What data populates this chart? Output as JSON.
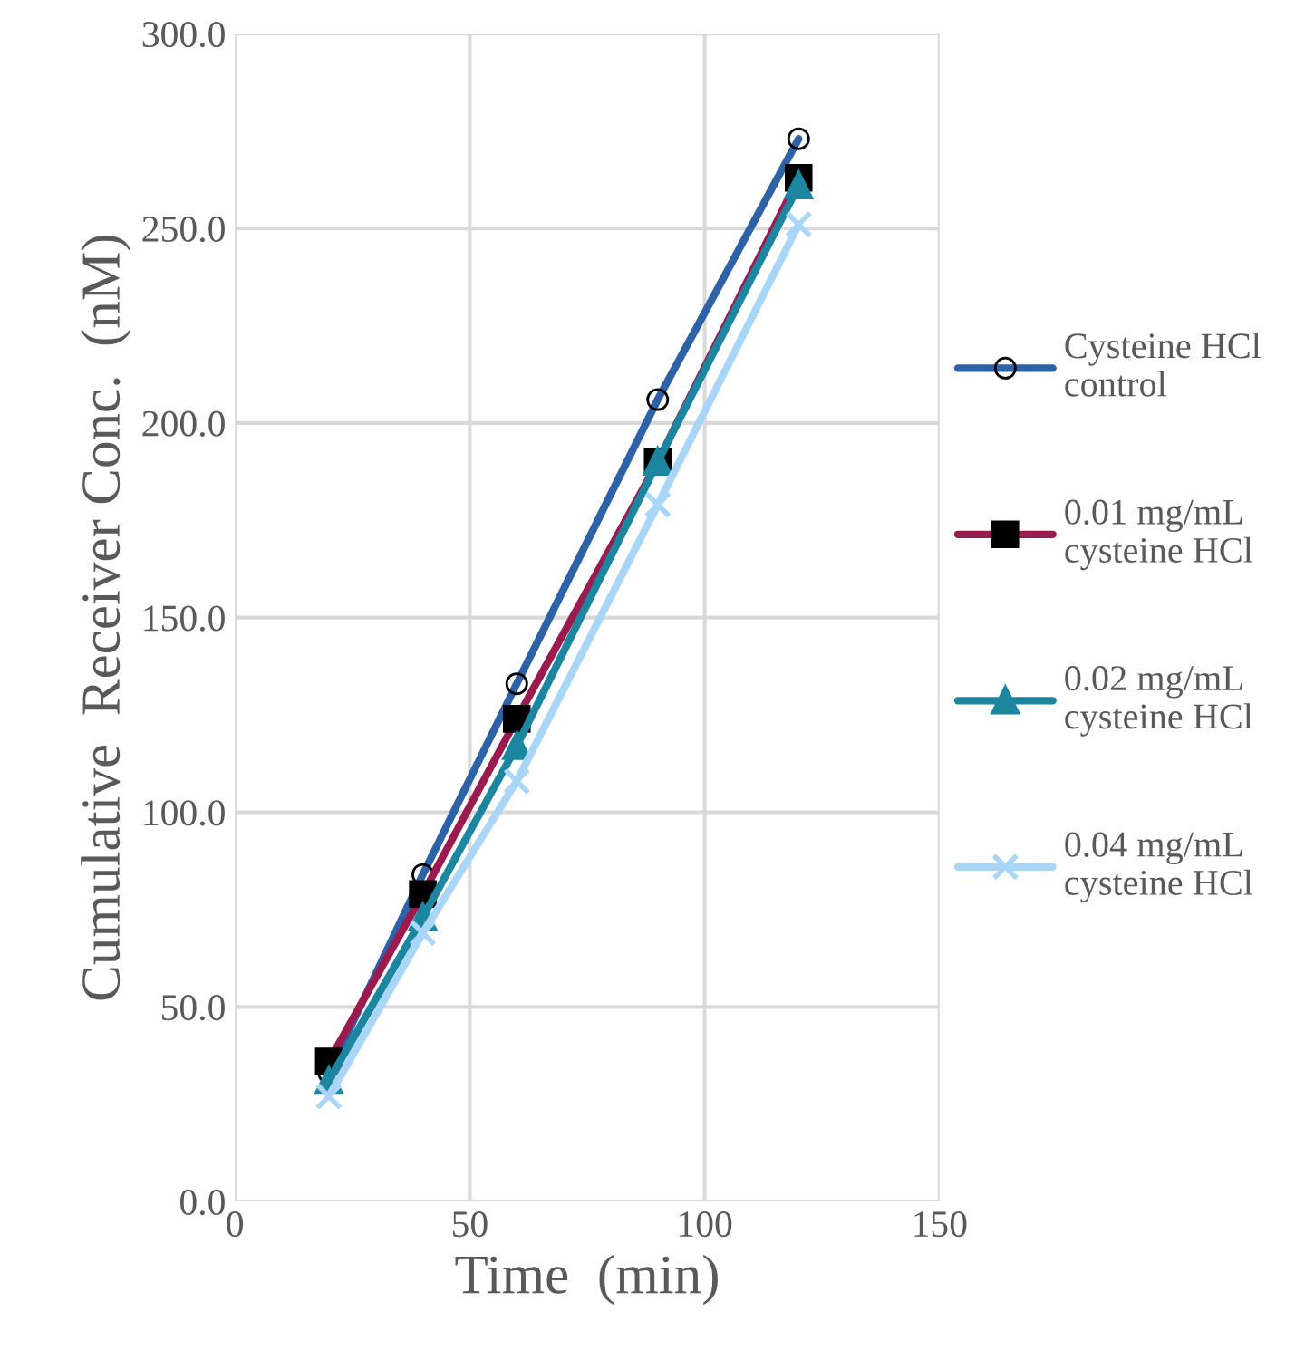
{
  "chart_data": {
    "type": "line",
    "xlabel": "Time  (min)",
    "ylabel": "Cumulative  Receiver Conc.  (nM)",
    "x": [
      20,
      40,
      60,
      90,
      120
    ],
    "series": [
      {
        "name": "Cysteine HCl\ncontrol",
        "color": "#2e62a6",
        "marker": "circle",
        "values": [
          33,
          84,
          133,
          206,
          273
        ]
      },
      {
        "name": "0.01 mg/mL\ncysteine HCl",
        "color": "#9b1b4f",
        "marker": "square",
        "values": [
          36,
          79,
          124,
          190,
          263
        ]
      },
      {
        "name": "0.02 mg/mL\ncysteine HCl",
        "color": "#1c86a0",
        "marker": "triangle",
        "values": [
          31,
          73,
          117,
          190,
          261
        ]
      },
      {
        "name": "0.04 mg/mL\ncysteine HCl",
        "color": "#a9d6f7",
        "marker": "cross",
        "values": [
          27,
          69,
          108,
          179,
          251
        ]
      }
    ],
    "xlim": [
      0,
      150
    ],
    "xticks": [
      0,
      50,
      100,
      150
    ],
    "ylim": [
      0,
      300
    ],
    "yticks": [
      {
        "value": 0,
        "label": "0.0"
      },
      {
        "value": 50,
        "label": "50.0"
      },
      {
        "value": 100,
        "label": "100.0"
      },
      {
        "value": 150,
        "label": "150.0"
      },
      {
        "value": 200,
        "label": "200.0"
      },
      {
        "value": 250,
        "label": "250.0"
      },
      {
        "value": 300,
        "label": "300.0"
      }
    ],
    "grid": true,
    "legend": "right",
    "line_style": "solid"
  }
}
